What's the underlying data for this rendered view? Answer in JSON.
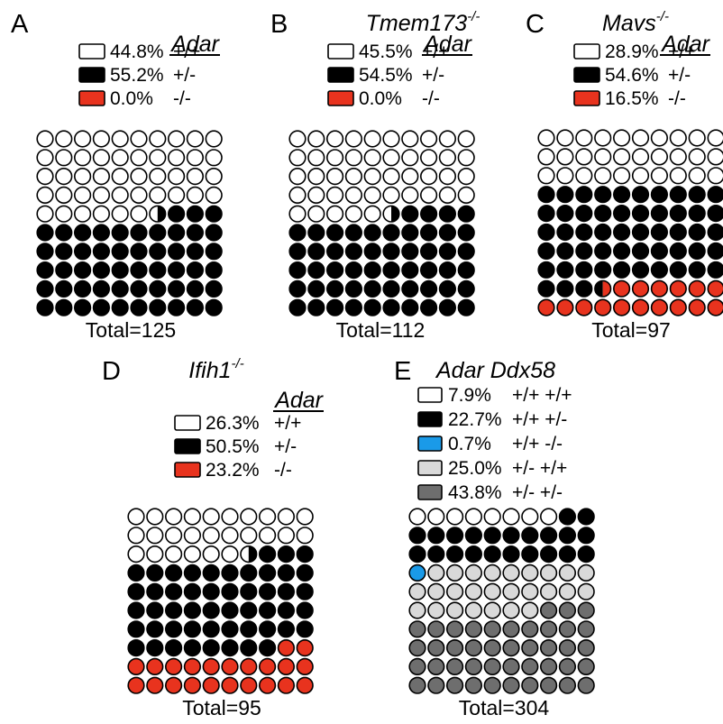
{
  "colors": {
    "wt": "#ffffff",
    "het": "#000000",
    "ko": "#e8331e",
    "ddx_ko": "#1a9ae8",
    "het_wt": "#d9d9d9",
    "het_het": "#6e6e6e",
    "stroke": "#000000"
  },
  "chart_data": [
    {
      "type": "waffle",
      "panel_letter": "A",
      "genotype_title": "",
      "title_superscript": "",
      "gene_label": "Adar",
      "categories": [
        {
          "percent_label": "44.8%",
          "genotype": "+/+",
          "value": 44.8,
          "color_key": "wt"
        },
        {
          "percent_label": "55.2%",
          "genotype": "+/-",
          "value": 55.2,
          "color_key": "het"
        },
        {
          "percent_label": "0.0%",
          "genotype": "-/-",
          "value": 0.0,
          "color_key": "ko"
        }
      ],
      "rows": 10,
      "cols": 10,
      "total": 125,
      "total_label": "Total=125",
      "dot_sequence": [
        [
          "wt",
          46.5
        ],
        [
          "het",
          53.5
        ]
      ]
    },
    {
      "type": "waffle",
      "panel_letter": "B",
      "genotype_title": "Tmem173",
      "title_superscript": "-/-",
      "gene_label": "Adar",
      "categories": [
        {
          "percent_label": "45.5%",
          "genotype": "+/+",
          "value": 45.5,
          "color_key": "wt"
        },
        {
          "percent_label": "54.5%",
          "genotype": "+/-",
          "value": 54.5,
          "color_key": "het"
        },
        {
          "percent_label": "0.0%",
          "genotype": "-/-",
          "value": 0.0,
          "color_key": "ko"
        }
      ],
      "rows": 10,
      "cols": 10,
      "total": 112,
      "total_label": "Total=112",
      "dot_sequence": [
        [
          "wt",
          45.5
        ],
        [
          "het",
          54.5
        ]
      ]
    },
    {
      "type": "waffle",
      "panel_letter": "C",
      "genotype_title": "Mavs",
      "title_superscript": "-/-",
      "gene_label": "Adar",
      "categories": [
        {
          "percent_label": "28.9%",
          "genotype": "+/+",
          "value": 28.9,
          "color_key": "wt"
        },
        {
          "percent_label": "54.6%",
          "genotype": "+/-",
          "value": 54.6,
          "color_key": "het"
        },
        {
          "percent_label": "16.5%",
          "genotype": "-/-",
          "value": 16.5,
          "color_key": "ko"
        }
      ],
      "rows": 10,
      "cols": 10,
      "total": 97,
      "total_label": "Total=97",
      "dot_sequence": [
        [
          "wt",
          30
        ],
        [
          "het",
          53.5
        ],
        [
          "ko",
          16.5
        ]
      ]
    },
    {
      "type": "waffle",
      "panel_letter": "D",
      "genotype_title": "Ifih1",
      "title_superscript": "-/-",
      "gene_label": "Adar",
      "categories": [
        {
          "percent_label": "26.3%",
          "genotype": "+/+",
          "value": 26.3,
          "color_key": "wt"
        },
        {
          "percent_label": "50.5%",
          "genotype": "+/-",
          "value": 50.5,
          "color_key": "het"
        },
        {
          "percent_label": "23.2%",
          "genotype": "-/-",
          "value": 23.2,
          "color_key": "ko"
        }
      ],
      "rows": 10,
      "cols": 10,
      "total": 95,
      "total_label": "Total=95",
      "dot_sequence": [
        [
          "wt",
          26.5
        ],
        [
          "het",
          51.5
        ],
        [
          "ko",
          22
        ]
      ]
    },
    {
      "type": "waffle",
      "panel_letter": "E",
      "genotype_title": "Adar Ddx58",
      "title_superscript": "",
      "gene_label": "",
      "categories": [
        {
          "percent_label": "7.9%",
          "genotype": "+/+ +/+",
          "value": 7.9,
          "color_key": "wt"
        },
        {
          "percent_label": "22.7%",
          "genotype": "+/+ +/-",
          "value": 22.7,
          "color_key": "het"
        },
        {
          "percent_label": "0.7%",
          "genotype": "+/+ -/-",
          "value": 0.7,
          "color_key": "ddx_ko"
        },
        {
          "percent_label": "25.0%",
          "genotype": "+/- +/+",
          "value": 25.0,
          "color_key": "het_wt"
        },
        {
          "percent_label": "43.8%",
          "genotype": "+/- +/-",
          "value": 43.8,
          "color_key": "het_het"
        }
      ],
      "rows": 10,
      "cols": 10,
      "total": 304,
      "total_label": "Total=304",
      "dot_sequence": [
        [
          "wt",
          8
        ],
        [
          "het",
          22
        ],
        [
          "ddx_ko",
          1
        ],
        [
          "het_wt",
          26
        ],
        [
          "het_het",
          43
        ]
      ]
    }
  ]
}
